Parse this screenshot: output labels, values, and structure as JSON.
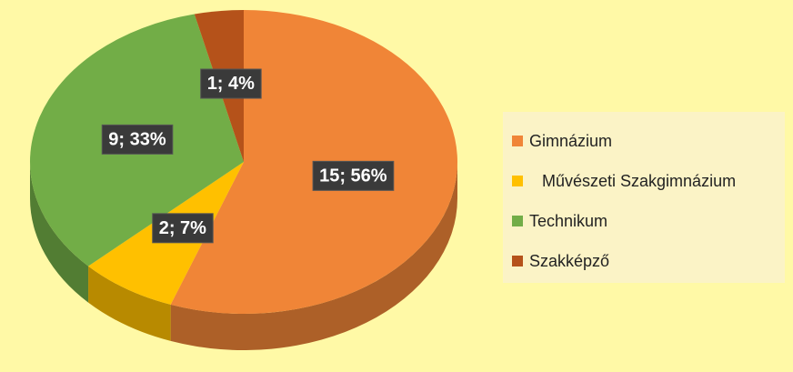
{
  "chart_data": {
    "type": "pie",
    "categories": [
      "Gimnázium",
      "Művészeti Szakgimnázium",
      "Technikum",
      "Szakképző"
    ],
    "values": [
      15,
      2,
      9,
      1
    ],
    "value_labels": [
      "15; 56%",
      "2; 7%",
      "9; 33%",
      "1; 4%"
    ],
    "colors": [
      "#F08537",
      "#FFC000",
      "#72AD47",
      "#B5521A"
    ],
    "legend": "right"
  }
}
